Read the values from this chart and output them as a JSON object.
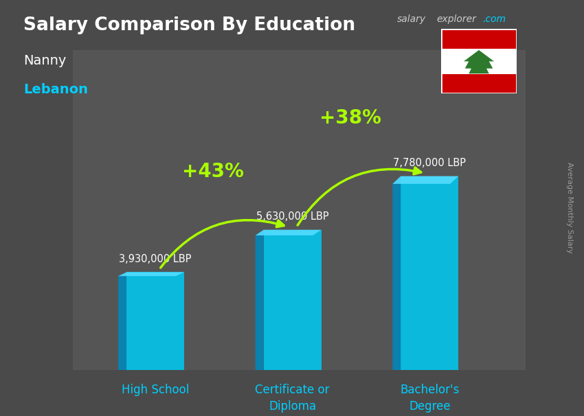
{
  "title": "Salary Comparison By Education",
  "subtitle_job": "Nanny",
  "subtitle_location": "Lebanon",
  "watermark_salary": "salary",
  "watermark_explorer": "explorer",
  "watermark_com": ".com",
  "ylabel": "Average Monthly Salary",
  "categories": [
    "High School",
    "Certificate or\nDiploma",
    "Bachelor's\nDegree"
  ],
  "values": [
    3930000,
    5630000,
    7780000
  ],
  "value_labels": [
    "3,930,000 LBP",
    "5,630,000 LBP",
    "7,780,000 LBP"
  ],
  "bar_color_face": "#00c8f0",
  "bar_color_side": "#0088bb",
  "bar_color_top": "#55ddff",
  "pct_labels": [
    "+43%",
    "+38%"
  ],
  "pct_color": "#aaff00",
  "arrow_color": "#aaff00",
  "title_color": "#ffffff",
  "subtitle_job_color": "#ffffff",
  "subtitle_location_color": "#00cfff",
  "value_label_color": "#ffffff",
  "category_label_color": "#00cfff",
  "watermark_color": "#cccccc",
  "watermark_com_color": "#00cfff",
  "ylabel_color": "#aaaaaa",
  "bg_color": "#4a4a4a",
  "fig_width": 8.5,
  "fig_height": 6.06,
  "dpi": 100
}
